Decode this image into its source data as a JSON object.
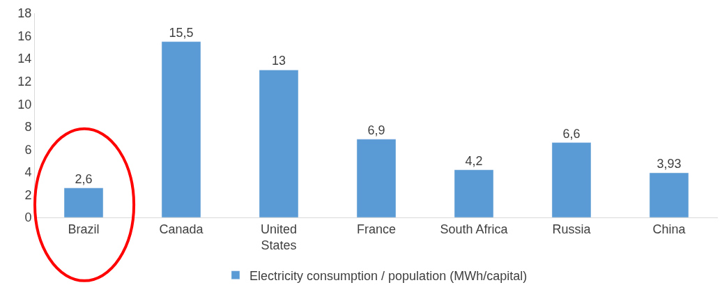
{
  "chart_data": {
    "type": "bar",
    "categories": [
      "Brazil",
      "Canada",
      "United States",
      "France",
      "South Africa",
      "Russia",
      "China"
    ],
    "series": [
      {
        "name": "Electricity consumption / population (MWh/capital)",
        "color": "#5b9bd5",
        "values": [
          2.6,
          15.5,
          13,
          6.9,
          4.2,
          6.6,
          3.93
        ],
        "value_labels": [
          "2,6",
          "15,5",
          "13",
          "6,9",
          "4,2",
          "6,6",
          "3,93"
        ]
      }
    ],
    "ylim": [
      0,
      18
    ],
    "yticks": [
      0,
      2,
      4,
      6,
      8,
      10,
      12,
      14,
      16,
      18
    ],
    "legend": "bottom"
  }
}
